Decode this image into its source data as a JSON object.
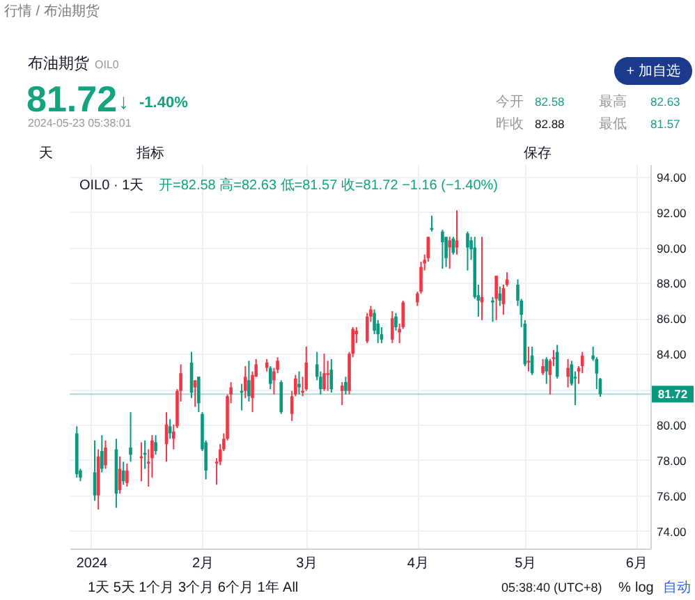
{
  "chart_data": {
    "type": "candlestick",
    "title": "布油期货",
    "subtitle": "OIL0",
    "annotations": [
      "行情 / 布油期货",
      "81.72",
      "↓",
      "-1.40%",
      "2024-05-23 05:38:01",
      "今开",
      "82.58",
      "最高",
      "82.63",
      "昨收",
      "82.88",
      "最低",
      "81.57",
      "+ 加自选",
      "天",
      "指标",
      "保存",
      "OIL0 · 1天",
      "开=82.58 高=82.63 低=81.57 收=81.72 −1.16 (−1.40%)",
      "1天  5天  1个月  3个月  6个月  1年  All",
      "05:38:40 (UTC+8)",
      "%",
      "log",
      "自动"
    ],
    "x": [
      "2023-12-28",
      "2023-12-29",
      "2024-01-02",
      "2024-01-03",
      "2024-01-04",
      "2024-01-05",
      "2024-01-08",
      "2024-01-09",
      "2024-01-10",
      "2024-01-11",
      "2024-01-12",
      "2024-01-15",
      "2024-01-16",
      "2024-01-17",
      "2024-01-18",
      "2024-01-19",
      "2024-01-22",
      "2024-01-23",
      "2024-01-24",
      "2024-01-25",
      "2024-01-26",
      "2024-01-29",
      "2024-01-30",
      "2024-01-31",
      "2024-02-01",
      "2024-02-02",
      "2024-02-05",
      "2024-02-06",
      "2024-02-07",
      "2024-02-08",
      "2024-02-09",
      "2024-02-12",
      "2024-02-13",
      "2024-02-14",
      "2024-02-15",
      "2024-02-16",
      "2024-02-19",
      "2024-02-20",
      "2024-02-21",
      "2024-02-22",
      "2024-02-23",
      "2024-02-26",
      "2024-02-27",
      "2024-02-28",
      "2024-02-29",
      "2024-03-01",
      "2024-03-04",
      "2024-03-05",
      "2024-03-06",
      "2024-03-07",
      "2024-03-08",
      "2024-03-11",
      "2024-03-12",
      "2024-03-13",
      "2024-03-14",
      "2024-03-15",
      "2024-03-18",
      "2024-03-19",
      "2024-03-20",
      "2024-03-21",
      "2024-03-22",
      "2024-03-25",
      "2024-03-26",
      "2024-03-27",
      "2024-03-28",
      "2024-04-01",
      "2024-04-02",
      "2024-04-03",
      "2024-04-04",
      "2024-04-05",
      "2024-04-08",
      "2024-04-09",
      "2024-04-10",
      "2024-04-11",
      "2024-04-12",
      "2024-04-15",
      "2024-04-16",
      "2024-04-17",
      "2024-04-18",
      "2024-04-19",
      "2024-04-22",
      "2024-04-23",
      "2024-04-24",
      "2024-04-25",
      "2024-04-26",
      "2024-04-29",
      "2024-04-30",
      "2024-05-01",
      "2024-05-02",
      "2024-05-03",
      "2024-05-06",
      "2024-05-07",
      "2024-05-08",
      "2024-05-09",
      "2024-05-10",
      "2024-05-13",
      "2024-05-14",
      "2024-05-15",
      "2024-05-16",
      "2024-05-17",
      "2024-05-20",
      "2024-05-21",
      "2024-05-22"
    ],
    "ohlc": [
      [
        79.5,
        79.9,
        77.0,
        77.2
      ],
      [
        77.4,
        77.5,
        76.8,
        77.0
      ],
      [
        77.3,
        79.1,
        75.7,
        76.0
      ],
      [
        76.0,
        78.6,
        75.2,
        78.2
      ],
      [
        78.5,
        79.4,
        77.3,
        77.5
      ],
      [
        77.7,
        79.1,
        77.5,
        78.7
      ],
      [
        78.6,
        79.2,
        75.3,
        76.1
      ],
      [
        76.3,
        78.2,
        76.1,
        77.5
      ],
      [
        77.4,
        77.9,
        76.6,
        76.8
      ],
      [
        76.7,
        77.8,
        76.5,
        77.4
      ],
      [
        78.7,
        80.7,
        77.9,
        78.3
      ],
      [
        78.1,
        79.0,
        76.8,
        78.2
      ],
      [
        78.4,
        79.1,
        77.5,
        78.3
      ],
      [
        77.8,
        78.6,
        76.5,
        77.9
      ],
      [
        78.1,
        79.4,
        77.0,
        79.1
      ],
      [
        79.0,
        79.4,
        78.3,
        78.5
      ],
      [
        78.9,
        80.7,
        77.9,
        80.0
      ],
      [
        79.9,
        80.3,
        79.2,
        79.5
      ],
      [
        79.2,
        80.0,
        78.6,
        79.6
      ],
      [
        79.9,
        82.0,
        79.8,
        81.9
      ],
      [
        81.9,
        83.4,
        81.3,
        82.9
      ],
      [
        83.5,
        84.1,
        81.5,
        81.8
      ],
      [
        82.1,
        82.5,
        81.0,
        82.5
      ],
      [
        82.7,
        82.7,
        80.7,
        81.2
      ],
      [
        80.6,
        80.7,
        78.5,
        78.6
      ],
      [
        79.0,
        79.1,
        76.9,
        77.4
      ],
      [
        77.8,
        78.1,
        76.6,
        77.9
      ],
      [
        77.9,
        78.9,
        77.7,
        78.6
      ],
      [
        78.6,
        79.5,
        78.5,
        79.2
      ],
      [
        79.2,
        81.7,
        79.1,
        81.6
      ],
      [
        81.7,
        82.4,
        81.2,
        82.1
      ],
      [
        81.9,
        82.3,
        80.8,
        81.8
      ],
      [
        81.9,
        83.3,
        81.5,
        82.7
      ],
      [
        82.5,
        83.6,
        81.3,
        81.6
      ],
      [
        81.5,
        83.0,
        80.7,
        82.8
      ],
      [
        82.7,
        83.7,
        82.7,
        83.4
      ],
      [
        83.2,
        83.7,
        83.0,
        83.5
      ],
      [
        83.2,
        83.3,
        82.0,
        82.3
      ],
      [
        82.5,
        83.2,
        81.7,
        83.0
      ],
      [
        83.1,
        83.8,
        82.9,
        83.6
      ],
      [
        82.4,
        82.5,
        80.6,
        80.7
      ],
      [
        80.6,
        81.9,
        80.2,
        81.6
      ],
      [
        81.7,
        82.8,
        81.6,
        82.6
      ],
      [
        82.3,
        83.0,
        81.7,
        82.1
      ],
      [
        81.8,
        82.7,
        81.6,
        81.9
      ],
      [
        82.0,
        84.4,
        81.9,
        83.5
      ],
      [
        83.4,
        84.1,
        82.5,
        82.7
      ],
      [
        82.7,
        83.0,
        81.7,
        82.0
      ],
      [
        82.0,
        84.0,
        81.9,
        82.9
      ],
      [
        82.8,
        83.6,
        81.9,
        82.9
      ],
      [
        83.1,
        83.7,
        81.8,
        82.0
      ],
      [
        81.9,
        82.4,
        81.1,
        82.2
      ],
      [
        82.4,
        82.7,
        81.7,
        81.9
      ],
      [
        81.9,
        84.1,
        81.7,
        84.0
      ],
      [
        84.0,
        85.5,
        83.8,
        85.4
      ],
      [
        85.1,
        85.5,
        84.6,
        85.3
      ],
      [
        84.7,
        86.3,
        84.6,
        86.1
      ],
      [
        86.1,
        86.7,
        85.8,
        86.5
      ],
      [
        86.3,
        86.5,
        85.1,
        85.3
      ],
      [
        85.7,
        85.9,
        84.6,
        85.1
      ],
      [
        85.1,
        85.5,
        84.6,
        84.8
      ],
      [
        84.8,
        86.4,
        84.6,
        86.0
      ],
      [
        86.1,
        86.3,
        85.3,
        85.5
      ],
      [
        85.2,
        85.7,
        84.6,
        85.4
      ],
      [
        85.5,
        87.0,
        85.4,
        86.9
      ],
      [
        86.9,
        87.5,
        86.7,
        87.4
      ],
      [
        87.5,
        89.2,
        87.4,
        88.9
      ],
      [
        89.1,
        89.6,
        88.7,
        89.3
      ],
      [
        89.4,
        90.6,
        89.2,
        90.6
      ],
      [
        91.1,
        91.8,
        90.9,
        91.0
      ],
      [
        90.9,
        91.0,
        88.8,
        90.3
      ],
      [
        90.6,
        90.6,
        88.9,
        89.4
      ],
      [
        90.0,
        90.6,
        88.8,
        90.4
      ],
      [
        90.5,
        90.6,
        89.6,
        89.7
      ],
      [
        90.0,
        92.1,
        89.6,
        90.4
      ],
      [
        90.8,
        90.9,
        88.7,
        90.0
      ],
      [
        90.4,
        90.6,
        89.3,
        89.9
      ],
      [
        90.0,
        90.6,
        87.1,
        87.2
      ],
      [
        87.3,
        87.9,
        86.1,
        87.0
      ],
      [
        86.9,
        90.6,
        85.9,
        87.2
      ],
      [
        87.0,
        87.2,
        85.8,
        86.9
      ],
      [
        87.1,
        88.4,
        85.9,
        88.4
      ],
      [
        87.4,
        87.8,
        86.7,
        87.0
      ],
      [
        86.8,
        87.9,
        86.2,
        87.7
      ],
      [
        87.9,
        88.6,
        87.8,
        88.2
      ],
      [
        87.9,
        88.2,
        86.7,
        87.0
      ],
      [
        87.0,
        87.1,
        85.5,
        86.2
      ],
      [
        85.7,
        85.9,
        83.3,
        83.4
      ],
      [
        83.5,
        84.4,
        83.0,
        83.6
      ],
      [
        83.9,
        84.4,
        82.8,
        82.9
      ],
      [
        82.9,
        83.7,
        82.8,
        83.3
      ],
      [
        83.7,
        83.8,
        82.3,
        83.0
      ],
      [
        82.8,
        83.7,
        81.7,
        83.6
      ],
      [
        83.7,
        84.2,
        83.3,
        83.8
      ],
      [
        84.1,
        84.5,
        82.6,
        82.7
      ],
      [
        82.7,
        83.7,
        82.1,
        83.2
      ],
      [
        83.4,
        83.6,
        82.2,
        82.3
      ],
      [
        82.7,
        83.0,
        81.1,
        82.6
      ],
      [
        83.0,
        83.3,
        82.3,
        83.2
      ],
      [
        83.3,
        84.1,
        82.9,
        83.9
      ],
      [
        83.9,
        84.4,
        83.6,
        83.7
      ],
      [
        83.7,
        83.8,
        82.0,
        82.88
      ],
      [
        82.58,
        82.63,
        81.57,
        81.72
      ]
    ],
    "colors": [
      "#089981",
      "#089981",
      "#089981",
      "#f23645",
      "#089981",
      "#f23645",
      "#089981",
      "#f23645",
      "#089981",
      "#f23645",
      "#089981",
      "#f23645",
      "#089981",
      "#f23645",
      "#f23645",
      "#089981",
      "#f23645",
      "#089981",
      "#f23645",
      "#f23645",
      "#f23645",
      "#089981",
      "#f23645",
      "#089981",
      "#089981",
      "#089981",
      "#f23645",
      "#f23645",
      "#f23645",
      "#f23645",
      "#f23645",
      "#089981",
      "#f23645",
      "#089981",
      "#f23645",
      "#f23645",
      "#f23645",
      "#089981",
      "#f23645",
      "#f23645",
      "#089981",
      "#f23645",
      "#f23645",
      "#089981",
      "#f23645",
      "#f23645",
      "#089981",
      "#089981",
      "#f23645",
      "#f23645",
      "#089981",
      "#f23645",
      "#089981",
      "#f23645",
      "#f23645",
      "#f23645",
      "#f23645",
      "#f23645",
      "#089981",
      "#089981",
      "#089981",
      "#f23645",
      "#089981",
      "#f23645",
      "#f23645",
      "#f23645",
      "#f23645",
      "#f23645",
      "#f23645",
      "#089981",
      "#089981",
      "#089981",
      "#f23645",
      "#089981",
      "#f23645",
      "#089981",
      "#089981",
      "#089981",
      "#089981",
      "#f23645",
      "#089981",
      "#f23645",
      "#089981",
      "#f23645",
      "#f23645",
      "#089981",
      "#089981",
      "#089981",
      "#f23645",
      "#089981",
      "#f23645",
      "#089981",
      "#f23645",
      "#f23645",
      "#089981",
      "#f23645",
      "#089981",
      "#089981",
      "#f23645",
      "#f23645",
      "#089981",
      "#089981",
      "#089981"
    ],
    "xlim": [
      "2023-12-26",
      "2024-06-05"
    ],
    "xticks": [
      {
        "value": "2024-01-01",
        "label": "2024"
      },
      {
        "value": "2024-02-01",
        "label": "2月"
      },
      {
        "value": "2024-03-01",
        "label": "3月"
      },
      {
        "value": "2024-04-01",
        "label": "4月"
      },
      {
        "value": "2024-05-01",
        "label": "5月"
      },
      {
        "value": "2024-06-01",
        "label": "6月"
      }
    ],
    "ylim": [
      73.0,
      94.7
    ],
    "yticks": [
      {
        "value": 74,
        "label": "74.00"
      },
      {
        "value": 76,
        "label": "76.00"
      },
      {
        "value": 78,
        "label": "78.00"
      },
      {
        "value": 80,
        "label": "80.00"
      },
      {
        "value": 82,
        "label": null
      },
      {
        "value": 84,
        "label": "84.00"
      },
      {
        "value": 86,
        "label": "86.00"
      },
      {
        "value": 88,
        "label": "88.00"
      },
      {
        "value": 90,
        "label": "90.00"
      },
      {
        "value": 92,
        "label": "92.00"
      },
      {
        "value": 94,
        "label": "94.00"
      }
    ],
    "ref_lines": [
      {
        "axis": "y",
        "value": 81.72,
        "label": "81.72",
        "color": "#089981",
        "line_style": "solid"
      }
    ],
    "grid": true
  }
}
